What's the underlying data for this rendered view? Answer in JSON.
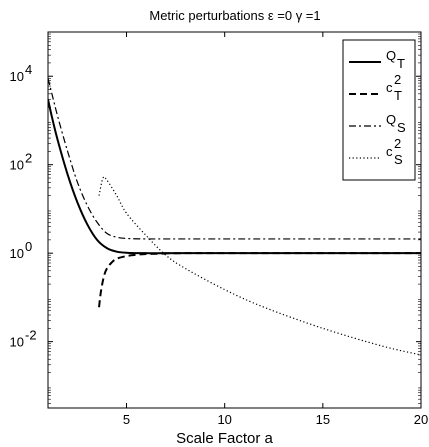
{
  "chart_data": {
    "type": "line",
    "title": "Metric perturbations   ε =0  γ =1",
    "xlabel": "Scale Factor a",
    "ylabel": "",
    "xlim": [
      1,
      20
    ],
    "ylim_log10": [
      -3.5,
      5
    ],
    "yscale": "log",
    "grid": false,
    "legend_position": "top-right",
    "x_ticks": [
      {
        "value": 5,
        "label": "5"
      },
      {
        "value": 10,
        "label": "10"
      },
      {
        "value": 15,
        "label": "15"
      },
      {
        "value": 20,
        "label": "20"
      }
    ],
    "y_ticks": [
      {
        "exp": -2,
        "base": "10",
        "sup": "-2"
      },
      {
        "exp": 0,
        "base": "10",
        "sup": "0"
      },
      {
        "exp": 2,
        "base": "10",
        "sup": "2"
      },
      {
        "exp": 4,
        "base": "10",
        "sup": "4"
      }
    ],
    "series": [
      {
        "name_main": "Q",
        "name_sub": "T",
        "name_sup": "",
        "style": "solid",
        "points": [
          [
            1,
            3000
          ],
          [
            1.2,
            1200
          ],
          [
            1.5,
            350
          ],
          [
            2,
            60
          ],
          [
            2.5,
            14
          ],
          [
            3,
            4.5
          ],
          [
            3.5,
            2
          ],
          [
            4,
            1.3
          ],
          [
            4.5,
            1.08
          ],
          [
            5,
            1.02
          ],
          [
            6,
            1
          ],
          [
            8,
            1
          ],
          [
            20,
            1
          ]
        ]
      },
      {
        "name_main": "c",
        "name_sub": "T",
        "name_sup": "2",
        "style": "dashed",
        "points": [
          [
            3.6,
            0.06
          ],
          [
            3.7,
            0.14
          ],
          [
            3.85,
            0.3
          ],
          [
            4,
            0.45
          ],
          [
            4.25,
            0.62
          ],
          [
            4.5,
            0.75
          ],
          [
            5,
            0.86
          ],
          [
            5.5,
            0.92
          ],
          [
            6,
            0.96
          ],
          [
            7,
            0.98
          ],
          [
            8,
            1
          ],
          [
            20,
            1
          ]
        ]
      },
      {
        "name_main": "Q",
        "name_sub": "S",
        "name_sup": "",
        "style": "dashdot",
        "points": [
          [
            1,
            9000
          ],
          [
            1.2,
            4000
          ],
          [
            1.5,
            1200
          ],
          [
            2,
            200
          ],
          [
            2.5,
            40
          ],
          [
            3,
            12
          ],
          [
            3.5,
            5
          ],
          [
            4,
            2.8
          ],
          [
            4.5,
            2.3
          ],
          [
            5,
            2.15
          ],
          [
            6,
            2.1
          ],
          [
            8,
            2.1
          ],
          [
            20,
            2.1
          ]
        ]
      },
      {
        "name_main": "c",
        "name_sub": "S",
        "name_sup": "2",
        "style": "dotted",
        "points": [
          [
            3.6,
            20
          ],
          [
            3.8,
            50
          ],
          [
            4,
            45
          ],
          [
            4.5,
            20
          ],
          [
            5,
            8
          ],
          [
            6,
            2.5
          ],
          [
            7,
            0.9
          ],
          [
            8,
            0.45
          ],
          [
            10,
            0.15
          ],
          [
            12,
            0.06
          ],
          [
            15,
            0.02
          ],
          [
            18,
            0.008
          ],
          [
            20,
            0.005
          ]
        ]
      }
    ]
  }
}
